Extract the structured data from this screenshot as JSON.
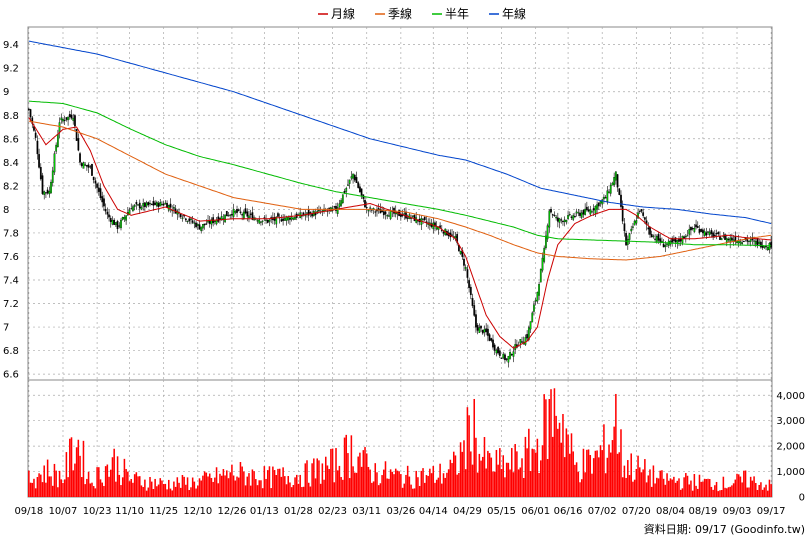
{
  "legend": [
    {
      "label": "月線",
      "color": "#cc0000"
    },
    {
      "label": "季線",
      "color": "#e06010"
    },
    {
      "label": "半年",
      "color": "#00bb00"
    },
    {
      "label": "年線",
      "color": "#0044cc"
    }
  ],
  "credit": "資料日期: 09/17  (Goodinfo.tw)",
  "chart_data": [
    {
      "type": "candlestick",
      "ylim": [
        6.55,
        9.55
      ],
      "yticks": [
        9.4,
        9.2,
        9,
        8.8,
        8.6,
        8.4,
        8.2,
        8,
        7.8,
        7.6,
        7.4,
        7.2,
        7,
        6.8,
        6.6
      ],
      "ytick_labels": [
        "9.4",
        "9.2",
        "9",
        "8.8",
        "8.6",
        "8.4",
        "8.2",
        "8",
        "7.8",
        "7.6",
        "7.4",
        "7.2",
        "7",
        "6.8",
        "6.6"
      ],
      "xtick_labels": [
        "09/18",
        "10/07",
        "10/23",
        "11/10",
        "11/25",
        "12/10",
        "12/26",
        "01/13",
        "01/28",
        "02/23",
        "03/11",
        "03/26",
        "04/14",
        "04/29",
        "05/15",
        "06/01",
        "06/16",
        "07/02",
        "07/20",
        "08/04",
        "08/19",
        "09/03",
        "09/17"
      ],
      "grid": true,
      "up_color": "#00cc00",
      "down_color": "#000000",
      "close_keypoints": [
        [
          0,
          8.85
        ],
        [
          4,
          8.6
        ],
        [
          8,
          8.15
        ],
        [
          12,
          8.15
        ],
        [
          18,
          8.75
        ],
        [
          26,
          8.8
        ],
        [
          30,
          8.4
        ],
        [
          36,
          8.35
        ],
        [
          42,
          8.1
        ],
        [
          46,
          7.95
        ],
        [
          52,
          7.85
        ],
        [
          60,
          8.02
        ],
        [
          80,
          8.05
        ],
        [
          100,
          7.85
        ],
        [
          120,
          7.98
        ],
        [
          140,
          7.9
        ],
        [
          160,
          7.95
        ],
        [
          180,
          8.0
        ],
        [
          190,
          8.3
        ],
        [
          198,
          8.0
        ],
        [
          220,
          7.95
        ],
        [
          240,
          7.85
        ],
        [
          250,
          7.75
        ],
        [
          256,
          7.5
        ],
        [
          262,
          7.0
        ],
        [
          268,
          6.95
        ],
        [
          274,
          6.8
        ],
        [
          280,
          6.72
        ],
        [
          286,
          6.85
        ],
        [
          292,
          6.92
        ],
        [
          298,
          7.3
        ],
        [
          302,
          7.65
        ],
        [
          305,
          8.0
        ],
        [
          310,
          7.9
        ],
        [
          320,
          7.95
        ],
        [
          330,
          8.0
        ],
        [
          338,
          8.1
        ],
        [
          344,
          8.3
        ],
        [
          350,
          7.7
        ],
        [
          358,
          8.0
        ],
        [
          364,
          7.8
        ],
        [
          372,
          7.7
        ],
        [
          380,
          7.72
        ],
        [
          390,
          7.85
        ],
        [
          400,
          7.78
        ],
        [
          410,
          7.75
        ],
        [
          420,
          7.74
        ],
        [
          430,
          7.7
        ],
        [
          435,
          7.7
        ]
      ],
      "ma_series": [
        {
          "label": "月線",
          "color": "#cc0000",
          "keypoints": [
            [
              0,
              8.78
            ],
            [
              10,
              8.55
            ],
            [
              20,
              8.68
            ],
            [
              28,
              8.7
            ],
            [
              36,
              8.5
            ],
            [
              44,
              8.2
            ],
            [
              52,
              8.0
            ],
            [
              60,
              7.95
            ],
            [
              80,
              8.02
            ],
            [
              100,
              7.9
            ],
            [
              120,
              7.92
            ],
            [
              140,
              7.92
            ],
            [
              160,
              7.95
            ],
            [
              180,
              8.0
            ],
            [
              200,
              8.05
            ],
            [
              220,
              7.95
            ],
            [
              240,
              7.85
            ],
            [
              250,
              7.75
            ],
            [
              256,
              7.6
            ],
            [
              262,
              7.35
            ],
            [
              268,
              7.1
            ],
            [
              276,
              6.92
            ],
            [
              284,
              6.82
            ],
            [
              292,
              6.88
            ],
            [
              298,
              7.0
            ],
            [
              304,
              7.4
            ],
            [
              310,
              7.7
            ],
            [
              320,
              7.88
            ],
            [
              330,
              7.95
            ],
            [
              340,
              8.0
            ],
            [
              350,
              8.0
            ],
            [
              356,
              7.95
            ],
            [
              364,
              7.85
            ],
            [
              376,
              7.75
            ],
            [
              390,
              7.75
            ],
            [
              410,
              7.78
            ],
            [
              420,
              7.76
            ],
            [
              435,
              7.74
            ]
          ]
        },
        {
          "label": "季線",
          "color": "#e06010",
          "keypoints": [
            [
              0,
              8.75
            ],
            [
              20,
              8.7
            ],
            [
              40,
              8.6
            ],
            [
              60,
              8.45
            ],
            [
              80,
              8.3
            ],
            [
              100,
              8.2
            ],
            [
              120,
              8.1
            ],
            [
              140,
              8.05
            ],
            [
              160,
              8.0
            ],
            [
              180,
              8.0
            ],
            [
              200,
              8.0
            ],
            [
              220,
              7.98
            ],
            [
              240,
              7.92
            ],
            [
              256,
              7.85
            ],
            [
              270,
              7.78
            ],
            [
              284,
              7.7
            ],
            [
              298,
              7.63
            ],
            [
              310,
              7.6
            ],
            [
              330,
              7.58
            ],
            [
              350,
              7.57
            ],
            [
              370,
              7.6
            ],
            [
              390,
              7.66
            ],
            [
              410,
              7.72
            ],
            [
              425,
              7.76
            ],
            [
              435,
              7.78
            ]
          ]
        },
        {
          "label": "半年",
          "color": "#00bb00",
          "keypoints": [
            [
              0,
              8.92
            ],
            [
              20,
              8.9
            ],
            [
              40,
              8.82
            ],
            [
              60,
              8.68
            ],
            [
              80,
              8.55
            ],
            [
              100,
              8.45
            ],
            [
              120,
              8.38
            ],
            [
              140,
              8.3
            ],
            [
              160,
              8.22
            ],
            [
              180,
              8.15
            ],
            [
              200,
              8.1
            ],
            [
              220,
              8.05
            ],
            [
              240,
              8.0
            ],
            [
              256,
              7.95
            ],
            [
              270,
              7.9
            ],
            [
              284,
              7.85
            ],
            [
              298,
              7.78
            ],
            [
              310,
              7.75
            ],
            [
              330,
              7.74
            ],
            [
              350,
              7.73
            ],
            [
              370,
              7.72
            ],
            [
              390,
              7.7
            ],
            [
              410,
              7.7
            ],
            [
              435,
              7.69
            ]
          ]
        },
        {
          "label": "年線",
          "color": "#0044cc",
          "keypoints": [
            [
              0,
              9.43
            ],
            [
              40,
              9.32
            ],
            [
              80,
              9.16
            ],
            [
              120,
              9.0
            ],
            [
              160,
              8.8
            ],
            [
              200,
              8.6
            ],
            [
              240,
              8.46
            ],
            [
              256,
              8.42
            ],
            [
              280,
              8.3
            ],
            [
              300,
              8.18
            ],
            [
              320,
              8.12
            ],
            [
              340,
              8.06
            ],
            [
              360,
              8.02
            ],
            [
              380,
              8.0
            ],
            [
              400,
              7.96
            ],
            [
              420,
              7.93
            ],
            [
              435,
              7.88
            ]
          ]
        }
      ]
    },
    {
      "type": "bar",
      "ylim": [
        0,
        4600
      ],
      "yticks": [
        0,
        1000,
        2000,
        3000,
        4000
      ],
      "ytick_labels": [
        "0",
        "1,000",
        "2,000",
        "3,000",
        "4,000"
      ],
      "bar_color": "#ff0000",
      "grid": true,
      "volume_keypoints": [
        [
          0,
          800
        ],
        [
          10,
          1200
        ],
        [
          20,
          900
        ],
        [
          28,
          2600
        ],
        [
          36,
          700
        ],
        [
          50,
          1600
        ],
        [
          60,
          800
        ],
        [
          80,
          600
        ],
        [
          100,
          700
        ],
        [
          120,
          1100
        ],
        [
          140,
          900
        ],
        [
          160,
          1000
        ],
        [
          180,
          1500
        ],
        [
          190,
          2200
        ],
        [
          200,
          1200
        ],
        [
          220,
          900
        ],
        [
          240,
          1000
        ],
        [
          250,
          1400
        ],
        [
          256,
          2400
        ],
        [
          260,
          3500
        ],
        [
          264,
          2000
        ],
        [
          270,
          1500
        ],
        [
          280,
          1400
        ],
        [
          290,
          1800
        ],
        [
          298,
          2300
        ],
        [
          302,
          3100
        ],
        [
          306,
          3800
        ],
        [
          310,
          4200
        ],
        [
          314,
          3200
        ],
        [
          320,
          1400
        ],
        [
          330,
          1600
        ],
        [
          340,
          2400
        ],
        [
          344,
          3600
        ],
        [
          348,
          1600
        ],
        [
          356,
          1300
        ],
        [
          370,
          800
        ],
        [
          390,
          700
        ],
        [
          410,
          600
        ],
        [
          420,
          800
        ],
        [
          435,
          500
        ]
      ]
    }
  ]
}
